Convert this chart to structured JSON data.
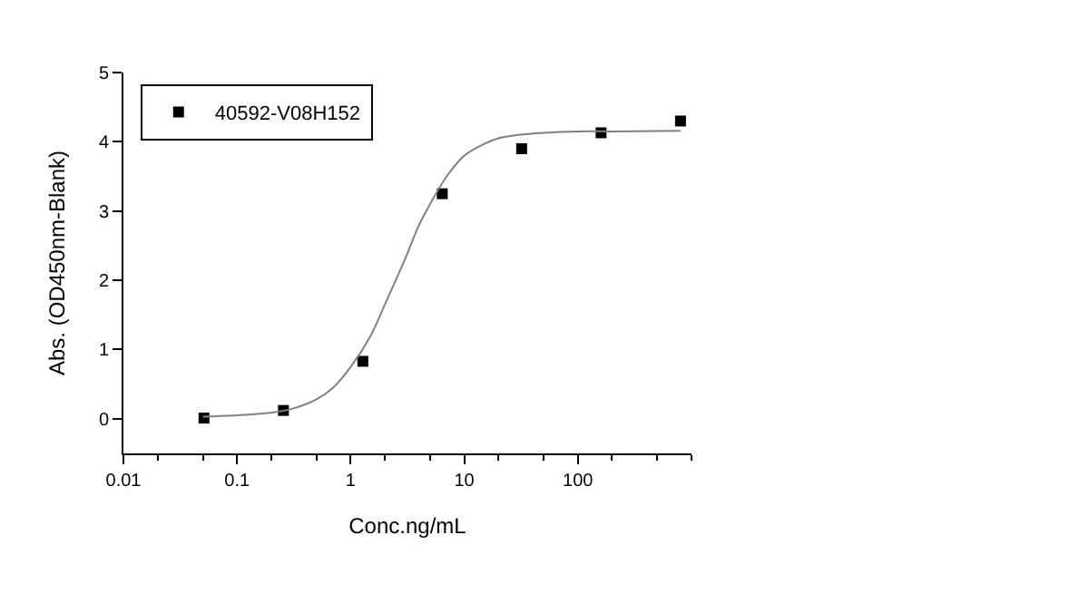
{
  "chart_data": {
    "type": "scatter",
    "xlabel": "Conc.ng/mL",
    "ylabel": "Abs. (OD450nm-Blank)",
    "log": "x",
    "xlim": [
      0.01,
      1000
    ],
    "xticks": [
      0.01,
      0.1,
      1,
      10,
      100
    ],
    "ylim": [
      -0.5,
      5
    ],
    "yticks": [
      0,
      1,
      2,
      3,
      4,
      5
    ],
    "legend": "top left",
    "marker": "square",
    "series": [
      {
        "name": "40592-V08H152",
        "color": "#000000",
        "x": [
          0.0512,
          0.256,
          1.28,
          6.4,
          32,
          160,
          800
        ],
        "values": [
          0.01,
          0.12,
          0.83,
          3.25,
          3.9,
          4.13,
          4.3
        ]
      },
      {
        "type": "line",
        "color": "#808080",
        "marker": "none",
        "x": [
          0.05,
          0.1,
          0.2,
          0.3,
          0.5,
          0.7,
          1,
          1.5,
          2,
          3,
          4,
          5,
          7,
          10,
          15,
          20,
          30,
          50,
          100,
          200,
          800
        ],
        "values": [
          0.03,
          0.05,
          0.09,
          0.14,
          0.28,
          0.45,
          0.75,
          1.2,
          1.65,
          2.3,
          2.8,
          3.1,
          3.5,
          3.8,
          3.97,
          4.05,
          4.1,
          4.13,
          4.15,
          4.15,
          4.16
        ]
      }
    ]
  }
}
